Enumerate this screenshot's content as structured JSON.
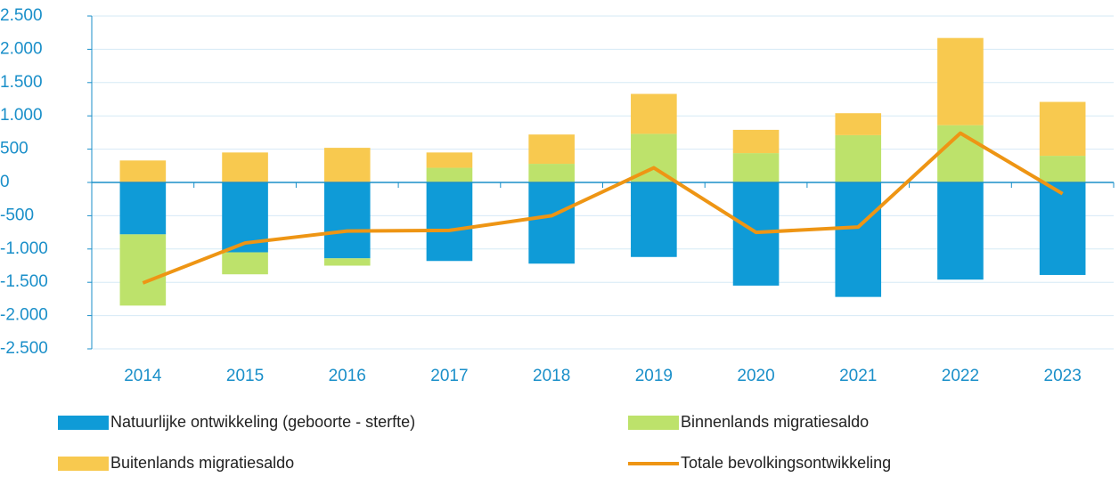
{
  "chart_data": {
    "type": "stacked_bar_line",
    "categories": [
      "2014",
      "2015",
      "2016",
      "2017",
      "2018",
      "2019",
      "2020",
      "2021",
      "2022",
      "2023"
    ],
    "series": [
      {
        "name": "Natuurlijke ontwikkeling (geboorte - sterfte)",
        "color": "#0f9bd7",
        "values": [
          -780,
          -1050,
          -1140,
          -1180,
          -1220,
          -1120,
          -1550,
          -1720,
          -1460,
          -1390
        ]
      },
      {
        "name": "Binnenlands migratiesaldo",
        "color": "#bde26b",
        "values": [
          -1070,
          -330,
          -110,
          220,
          280,
          730,
          440,
          710,
          860,
          400
        ]
      },
      {
        "name": "Buitenlands migratiesaldo",
        "color": "#f8c94f",
        "values": [
          330,
          450,
          520,
          230,
          440,
          600,
          350,
          330,
          1310,
          810
        ]
      },
      {
        "name": "Totale bevolkingsontwikkeling",
        "color": "#ee9514",
        "type": "line",
        "values": [
          -1510,
          -910,
          -730,
          -720,
          -500,
          220,
          -750,
          -670,
          740,
          -170
        ]
      }
    ],
    "ylim": [
      -2500,
      2500
    ],
    "yticks": [
      {
        "value": -2500,
        "label": "-2.500"
      },
      {
        "value": -2000,
        "label": "-2.000"
      },
      {
        "value": -1500,
        "label": "-1.500"
      },
      {
        "value": -1000,
        "label": "-1.000"
      },
      -500,
      0,
      500,
      {
        "value": 1000,
        "label": "1.000"
      },
      {
        "value": 1500,
        "label": "1.500"
      },
      {
        "value": 2000,
        "label": "2.000"
      },
      {
        "value": 2500,
        "label": "2.500"
      }
    ],
    "grid": true
  }
}
